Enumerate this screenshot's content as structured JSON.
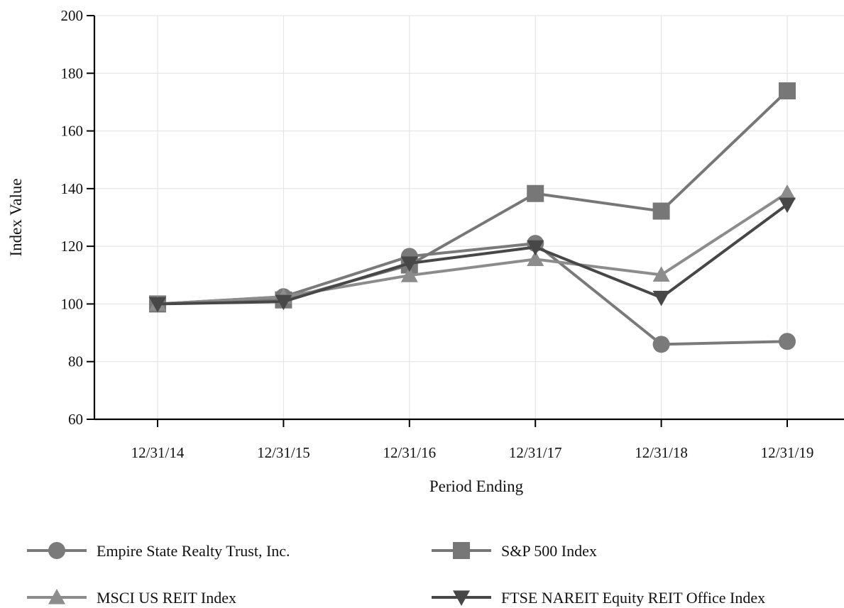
{
  "chart_data": {
    "type": "line",
    "xlabel": "Period Ending",
    "ylabel": "Index Value",
    "categories": [
      "12/31/14",
      "12/31/15",
      "12/31/16",
      "12/31/17",
      "12/31/18",
      "12/31/19"
    ],
    "ylim": [
      60,
      200
    ],
    "yticks": [
      60,
      80,
      100,
      120,
      140,
      160,
      180,
      200
    ],
    "grid": true,
    "legend_position": "bottom",
    "series": [
      {
        "name": "Empire State Realty Trust, Inc.",
        "marker": "circle",
        "color": "#7a7a7a",
        "values": [
          100,
          102.5,
          116.5,
          121,
          86,
          87
        ]
      },
      {
        "name": "S&P 500 Index",
        "marker": "square",
        "color": "#777777",
        "values": [
          100,
          101.4,
          113.5,
          138.3,
          132.2,
          173.9
        ]
      },
      {
        "name": "MSCI US REIT Index",
        "marker": "triangle-up",
        "color": "#8c8c8c",
        "values": [
          100,
          102.5,
          109.9,
          115.5,
          110.1,
          138.5
        ]
      },
      {
        "name": "FTSE NAREIT Equity REIT Office Index",
        "marker": "triangle-down",
        "color": "#474747",
        "values": [
          100,
          100.8,
          114.1,
          119.7,
          102.2,
          134.5
        ]
      }
    ]
  }
}
